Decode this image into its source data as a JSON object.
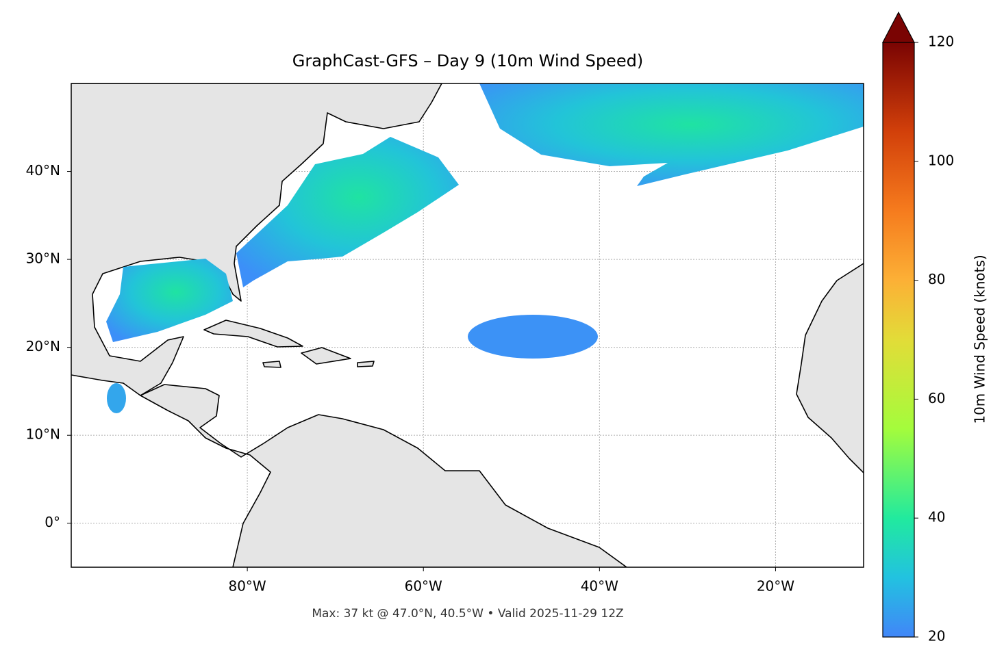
{
  "chart_data": {
    "type": "map",
    "title": "GraphCast-GFS – Day 9 (10m Wind Speed)",
    "note": "Max: 37 kt @ 47.0°N, 40.5°W • Valid 2025-11-29 12Z",
    "xlim": [
      -100,
      -10
    ],
    "ylim": [
      -5,
      50
    ],
    "xticks": [
      {
        "value": -80,
        "label": "80°W"
      },
      {
        "value": -60,
        "label": "60°W"
      },
      {
        "value": -40,
        "label": "40°W"
      },
      {
        "value": -20,
        "label": "20°W"
      }
    ],
    "yticks": [
      {
        "value": 0,
        "label": "0°"
      },
      {
        "value": 10,
        "label": "10°N"
      },
      {
        "value": 20,
        "label": "20°N"
      },
      {
        "value": 30,
        "label": "30°N"
      },
      {
        "value": 40,
        "label": "40°N"
      }
    ],
    "grid": true,
    "colorbar": {
      "label": "10m Wind Speed (knots)",
      "clim": [
        20,
        120
      ],
      "ticks": [
        20,
        40,
        60,
        80,
        100,
        120
      ]
    }
  }
}
